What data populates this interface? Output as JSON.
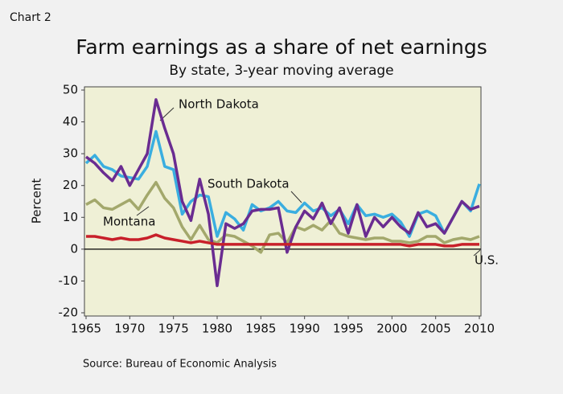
{
  "chart_data": {
    "type": "line",
    "label": "Chart 2",
    "title": "Farm earnings as a share of net earnings",
    "subtitle": "By state, 3-year moving average",
    "ylabel": "Percent",
    "source": "Source: Bureau of Economic Analysis",
    "x": [
      1965,
      1966,
      1967,
      1968,
      1969,
      1970,
      1971,
      1972,
      1973,
      1974,
      1975,
      1976,
      1977,
      1978,
      1979,
      1980,
      1981,
      1982,
      1983,
      1984,
      1985,
      1986,
      1987,
      1988,
      1989,
      1990,
      1991,
      1992,
      1993,
      1994,
      1995,
      1996,
      1997,
      1998,
      1999,
      2000,
      2001,
      2002,
      2003,
      2004,
      2005,
      2006,
      2007,
      2008,
      2009,
      2010
    ],
    "series": [
      {
        "name": "Montana",
        "color": "#a3a86c",
        "values": [
          14,
          15.5,
          13,
          12.5,
          14,
          15.5,
          12.5,
          17,
          21,
          16,
          13,
          7,
          3,
          7.5,
          3,
          2,
          4.5,
          4,
          2.5,
          1,
          -1,
          4.5,
          5,
          2,
          7,
          6,
          7.5,
          6,
          9,
          5,
          4,
          3.5,
          3,
          3.5,
          3.5,
          2.5,
          2.5,
          2,
          2.5,
          4,
          4,
          2,
          3,
          3.5,
          3,
          4
        ]
      },
      {
        "name": "South Dakota",
        "color": "#3aaee0",
        "values": [
          27,
          29.5,
          26,
          25,
          23,
          22.5,
          22,
          26,
          37,
          26,
          25,
          11,
          15,
          17,
          16.5,
          4,
          11.5,
          9.5,
          6,
          14,
          12,
          13,
          15,
          12,
          11.5,
          14.5,
          12,
          13,
          10.5,
          12.5,
          8,
          14,
          10.5,
          11,
          10,
          11,
          8.5,
          4,
          11,
          12,
          10.5,
          5,
          10,
          15,
          12,
          20.5
        ]
      },
      {
        "name": "North Dakota",
        "color": "#6a2c91",
        "values": [
          29,
          27,
          24,
          21.5,
          26,
          20,
          25,
          30,
          47,
          38,
          30,
          15,
          9,
          22,
          11,
          -11.5,
          8,
          6.5,
          8,
          12,
          12.5,
          12.5,
          13,
          -1,
          7,
          12,
          9.5,
          14.5,
          8,
          13,
          5,
          14,
          4,
          10,
          7,
          10,
          7,
          5,
          11.5,
          7,
          8,
          5,
          10,
          15,
          12.5,
          13.5
        ]
      },
      {
        "name": "U.S.",
        "color": "#c8202a",
        "values": [
          4,
          4,
          3.5,
          3,
          3.5,
          3,
          3,
          3.5,
          4.5,
          3.5,
          3,
          2.5,
          2,
          2.5,
          2,
          1.5,
          1.5,
          1.5,
          1.5,
          1.5,
          1.5,
          1.5,
          1.5,
          1.5,
          1.5,
          1.5,
          1.5,
          1.5,
          1.5,
          1.5,
          1.5,
          1.5,
          1.5,
          1.5,
          1.5,
          1.5,
          1.5,
          1,
          1.5,
          1.5,
          1.5,
          1,
          1,
          1.5,
          1.5,
          1.5
        ]
      }
    ],
    "xlim": [
      1965,
      2010
    ],
    "xticks": [
      1965,
      1970,
      1975,
      1980,
      1985,
      1990,
      1995,
      2000,
      2005,
      2010
    ],
    "ylim": [
      -20,
      50
    ],
    "yticks": [
      -20,
      -10,
      0,
      10,
      20,
      30,
      40,
      50
    ]
  }
}
